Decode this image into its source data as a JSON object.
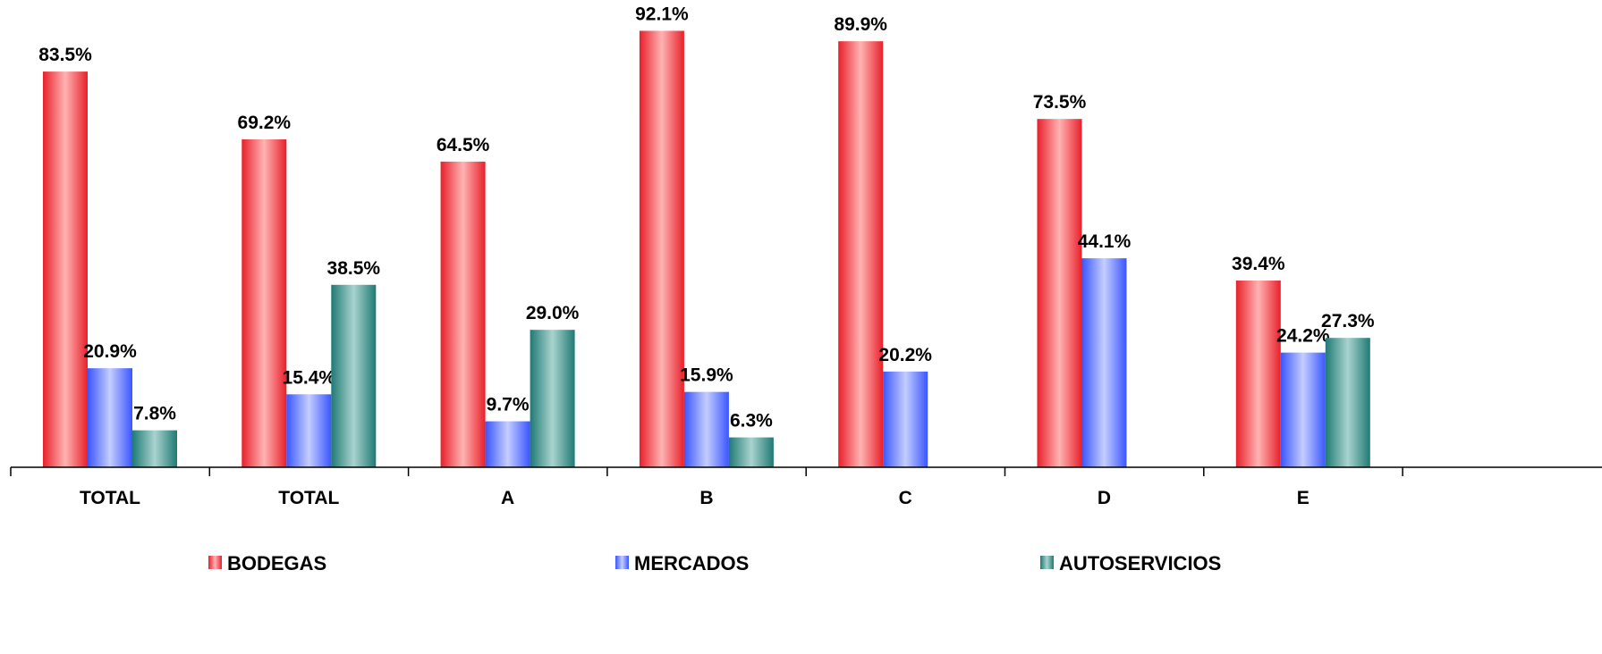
{
  "chart_data": {
    "type": "bar",
    "categories": [
      "TOTAL",
      "TOTAL",
      "A",
      "B",
      "C",
      "D",
      "E"
    ],
    "series": [
      {
        "name": "BODEGAS",
        "color": "#ff3b3b",
        "values": [
          83.5,
          69.2,
          64.5,
          92.1,
          89.9,
          73.5,
          39.4
        ],
        "labels": [
          "83.5%",
          "69.2%",
          "64.5%",
          "92.1%",
          "89.9%",
          "73.5%",
          "39.4%"
        ]
      },
      {
        "name": "MERCADOS",
        "color": "#5c7bff",
        "values": [
          20.9,
          15.4,
          9.7,
          15.9,
          20.2,
          44.1,
          24.2
        ],
        "labels": [
          "20.9%",
          "15.4%",
          "9.7%",
          "15.9%",
          "20.2%",
          "44.1%",
          "24.2%"
        ]
      },
      {
        "name": "AUTOSERVICIOS",
        "color": "#2e8c85",
        "values": [
          7.8,
          38.5,
          29.0,
          6.3,
          null,
          null,
          27.3
        ],
        "labels": [
          "7.8%",
          "38.5%",
          "29.0%",
          "6.3%",
          null,
          null,
          "27.3%"
        ]
      }
    ],
    "ylim": [
      0,
      100
    ],
    "grid": false,
    "legend": "bottom"
  }
}
